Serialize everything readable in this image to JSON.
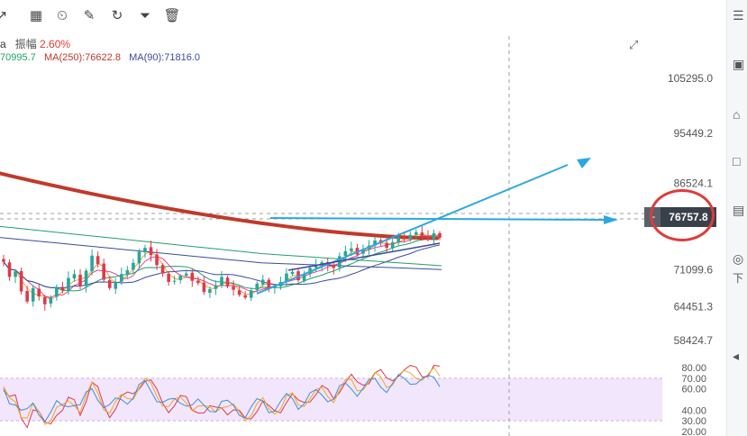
{
  "toolbar": {
    "icons": [
      "trend-line-icon",
      "grid-icon",
      "timer-icon",
      "note-icon",
      "magnet-icon",
      "filter-icon",
      "trash-icon"
    ]
  },
  "info": {
    "amplitude_label": "振幅",
    "amplitude_value": "2.60%",
    "ma_short": "70995.7",
    "ma250": "MA(250):76622.8",
    "ma90": "MA(90):71816.0",
    "ma_short_color": "#22a06b",
    "ma250_color": "#c0392b",
    "ma90_color": "#3b4aa0"
  },
  "current_price": "76757.8",
  "sidebar": {
    "bottom_label": "下"
  },
  "chart_data": {
    "type": "candlestick",
    "price_axis_ticks": [
      "105295.0",
      "95449.2",
      "86524.1",
      "71099.6",
      "64451.3",
      "58424.7"
    ],
    "price_axis_values": [
      105295.0,
      95449.2,
      86524.1,
      71099.6,
      64451.3,
      58424.7
    ],
    "current_price": 76757.8,
    "ma250_last": 76622.8,
    "ma90_last": 71816.0,
    "amplitude_pct": 2.6,
    "rsi_ticks": [
      "80.00",
      "70.00",
      "60.00",
      "40.00",
      "30.00",
      "20.00"
    ],
    "rsi_tick_values": [
      80,
      70,
      60,
      40,
      30,
      20
    ],
    "rsi_band": [
      30,
      70
    ],
    "price_closes": [
      72500,
      69800,
      70800,
      67200,
      65400,
      67800,
      66300,
      64900,
      66100,
      68000,
      67400,
      69600,
      70300,
      68200,
      70900,
      73600,
      72100,
      69300,
      67800,
      68900,
      70300,
      71000,
      72300,
      74300,
      75000,
      73700,
      71900,
      70400,
      68900,
      69100,
      70000,
      70400,
      69100,
      68700,
      67100,
      67600,
      68300,
      69800,
      68100,
      67500,
      66600,
      66100,
      67400,
      68600,
      69300,
      67800,
      68100,
      68900,
      70400,
      70700,
      69200,
      70300,
      71400,
      71900,
      72400,
      71900,
      71400,
      73500,
      74400,
      74900,
      73800,
      74800,
      75400,
      76300,
      75900,
      75000,
      76000,
      76900,
      76700,
      77300,
      77800,
      77100,
      76600,
      77600,
      76800
    ]
  }
}
